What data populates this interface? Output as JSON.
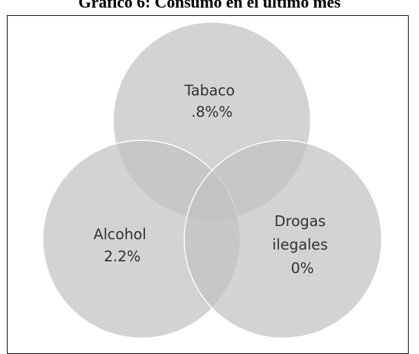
{
  "title": "Gráfico 6: Consumo en el último mes",
  "colors": {
    "circle_fill": "#c2c2c2",
    "circle_stroke": "#ffffff",
    "label_text": "#333333",
    "frame_border": "#000000"
  },
  "sets": [
    {
      "id": "tabaco",
      "lines": [
        "Tabaco",
        ".8%%"
      ]
    },
    {
      "id": "alcohol",
      "lines": [
        "Alcohol",
        "2.2%"
      ]
    },
    {
      "id": "drogas",
      "lines": [
        "Drogas",
        "ilegales",
        "0%"
      ]
    }
  ]
}
